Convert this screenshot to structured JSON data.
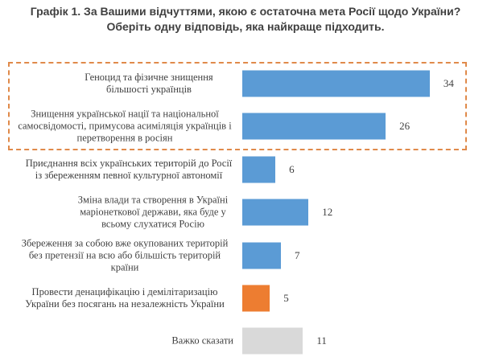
{
  "chart_data": {
    "type": "bar",
    "orientation": "horizontal",
    "title": "Графік 1. За Вашими відчуттями, якою є остаточна мета Росії щодо України? Оберіть одну відповідь, яка найкраще підходить.",
    "categories": [
      "Геноцид та фізичне знищення більшості українців",
      "Знищення української нації та національної самосвідомості, примусова асиміляція українців і перетворення в росіян",
      "Приєднання всіх українських територій до Росії із збереженням певної культурної автономії",
      "Зміна влади та створення в Україні маріонеткової держави, яка буде у всьому слухатися Росію",
      "Збереження за собою вже окупованих територій без претензії на всю або більшість територій країни",
      "Провести денацифікацію і демілітаризацію України без посягань на незалежність України",
      "Важко сказати"
    ],
    "values": [
      34,
      26,
      6,
      12,
      7,
      5,
      11
    ],
    "colors": [
      "#5b9bd5",
      "#5b9bd5",
      "#5b9bd5",
      "#5b9bd5",
      "#5b9bd5",
      "#ed7d31",
      "#d9d9d9"
    ],
    "highlight_box": {
      "categories": [
        0,
        1
      ],
      "color": "#e08a4a",
      "style": "dashed"
    },
    "xlim": [
      0,
      40
    ],
    "xlabel": "",
    "ylabel": "",
    "grid": false,
    "legend": "none"
  }
}
